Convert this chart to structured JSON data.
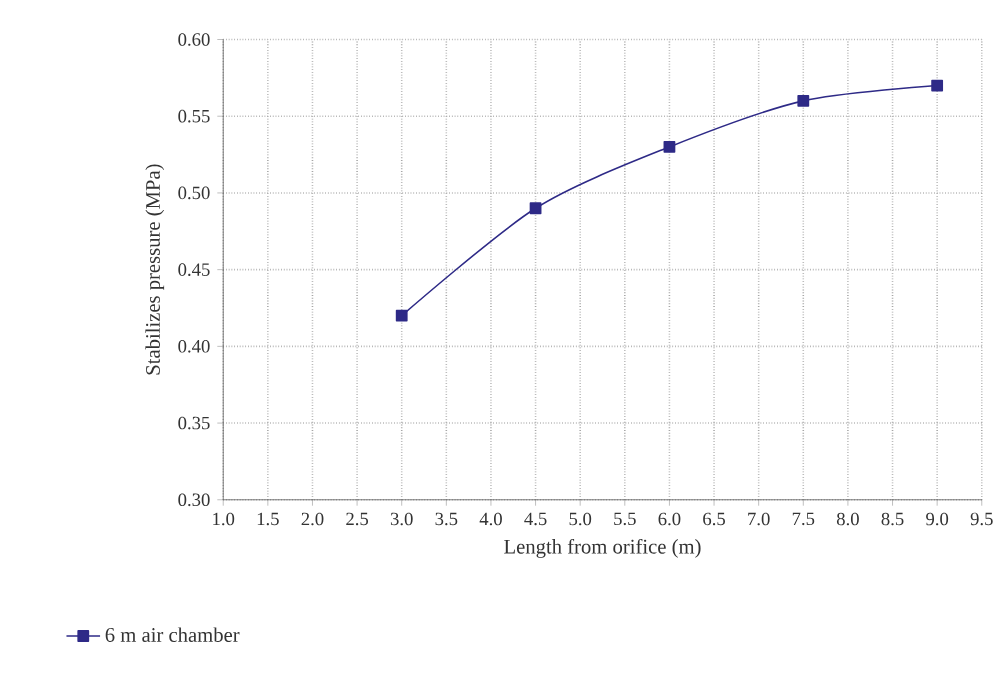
{
  "chart_data": {
    "type": "line",
    "xlabel": "Length from orifice (m)",
    "ylabel": "Stabilizes pressure (MPa)",
    "series": [
      {
        "name": "6 m air chamber",
        "color": "#2e2a87",
        "x": [
          3.0,
          4.5,
          6.0,
          7.5,
          9.0
        ],
        "values": [
          0.42,
          0.49,
          0.53,
          0.56,
          0.57
        ]
      }
    ],
    "xlim": [
      1.0,
      9.5
    ],
    "xticks": [
      {
        "value": 1.0,
        "label": "1.0"
      },
      {
        "value": 1.5,
        "label": "1.5"
      },
      {
        "value": 2.0,
        "label": "2.0"
      },
      {
        "value": 2.5,
        "label": "2.5"
      },
      {
        "value": 3.0,
        "label": "3.0"
      },
      {
        "value": 3.5,
        "label": "3.5"
      },
      {
        "value": 4.0,
        "label": "4.0"
      },
      {
        "value": 4.5,
        "label": "4.5"
      },
      {
        "value": 5.0,
        "label": "5.0"
      },
      {
        "value": 5.5,
        "label": "5.5"
      },
      {
        "value": 6.0,
        "label": "6.0"
      },
      {
        "value": 6.5,
        "label": "6.5"
      },
      {
        "value": 7.0,
        "label": "7.0"
      },
      {
        "value": 7.5,
        "label": "7.5"
      },
      {
        "value": 8.0,
        "label": "8.0"
      },
      {
        "value": 8.5,
        "label": "8.5"
      },
      {
        "value": 9.0,
        "label": "9.0"
      },
      {
        "value": 9.5,
        "label": "9.5"
      }
    ],
    "ylim": [
      0.3,
      0.6
    ],
    "yticks": [
      {
        "value": 0.3,
        "label": "0.30"
      },
      {
        "value": 0.35,
        "label": "0.35"
      },
      {
        "value": 0.4,
        "label": "0.40"
      },
      {
        "value": 0.45,
        "label": "0.45"
      },
      {
        "value": 0.5,
        "label": "0.50"
      },
      {
        "value": 0.55,
        "label": "0.55"
      },
      {
        "value": 0.6,
        "label": "0.60"
      }
    ],
    "grid": true,
    "legend": "bottom left",
    "marker": "square",
    "line_style": "solid"
  }
}
